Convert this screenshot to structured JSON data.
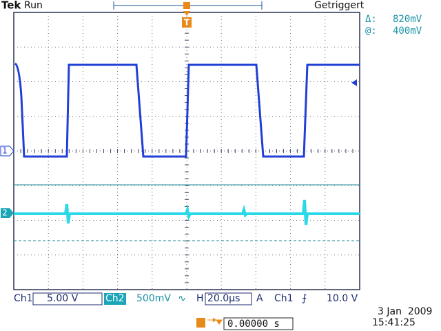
{
  "header": {
    "brand": "Tek",
    "status": "Run",
    "trigger_state": "Getriggert"
  },
  "cursor_readout": {
    "delta_label": "Δ:",
    "delta_value": "820mV",
    "at_label": "@:",
    "at_value": "400mV"
  },
  "markers": {
    "ch1": "1",
    "ch2": "2",
    "trigger": "T"
  },
  "status_bar": {
    "ch1_label": "Ch1",
    "ch1_scale": "5.00 V",
    "ch2_label": "Ch2",
    "ch2_scale": "500mV",
    "ch2_coupling": "∿",
    "horizontal_label": "H",
    "horizontal_scale": "20.0µs",
    "trigger_mode": "A",
    "trigger_source": "Ch1",
    "trigger_slope": "⨍",
    "trigger_level": "10.0 V"
  },
  "timestamp": {
    "date": "3 Jan  2009",
    "time": "15:41:25"
  },
  "trigger_position": "0.00000 s"
}
